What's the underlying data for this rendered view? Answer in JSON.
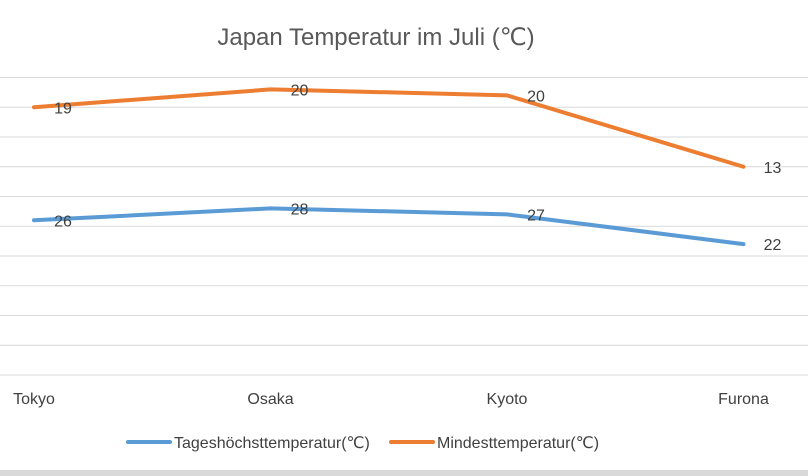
{
  "chart_data": {
    "type": "line",
    "stacked": true,
    "title": "Japan Temperatur im Juli (℃)",
    "categories": [
      "Tokyo",
      "Osaka",
      "Kyoto",
      "Furona"
    ],
    "series": [
      {
        "name": "Tageshöchsttemperatur(℃)",
        "values": [
          26,
          28,
          27,
          22
        ],
        "color": "#5b9bd5"
      },
      {
        "name": "Mindesttemperatur(℃)",
        "values": [
          19,
          20,
          20,
          13
        ],
        "color": "#ed7d31"
      }
    ],
    "ylim": [
      0,
      50
    ],
    "y_grid_step": 5,
    "y_tick_labels_shown": false,
    "grid": true,
    "legend": "bottom",
    "data_labels": true,
    "gridline_color": "#d9d9d9",
    "label_color": "#404040"
  }
}
